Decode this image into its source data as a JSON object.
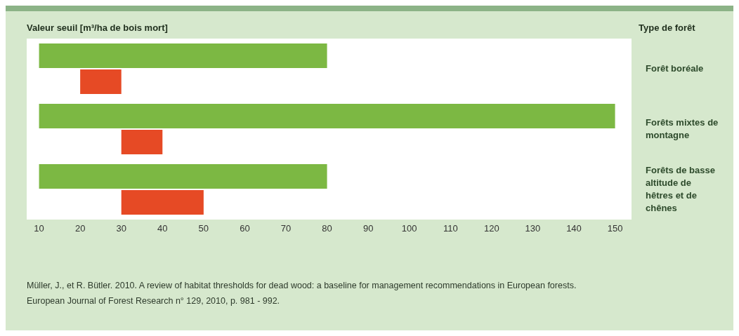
{
  "chart_data": {
    "type": "bar",
    "orientation": "horizontal",
    "title": "Valeur seuil [m³/ha de bois mort]",
    "ylabel": "Type de forêt",
    "categories": [
      "Forêt boréale",
      "Forêts mixtes de montagne",
      "Forêts de basse altitude de hêtres et de chênes"
    ],
    "series": [
      {
        "color": "#7cb843",
        "base": [
          10,
          10,
          10
        ],
        "values": [
          70,
          140,
          70
        ]
      },
      {
        "color": "#e64a25",
        "base": [
          20,
          30,
          30
        ],
        "values": [
          10,
          10,
          20
        ]
      }
    ],
    "xlim": [
      7,
      154
    ],
    "xticks": [
      10,
      20,
      30,
      40,
      50,
      60,
      70,
      80,
      90,
      100,
      110,
      120,
      130,
      140,
      150
    ],
    "grid": false,
    "legend": false,
    "annotations": [
      "Müller, J., et R. Bütler. 2010. A review of habitat thresholds for dead wood: a baseline for management recommendations in European forests. European Journal of Forest Research n° 129, 2010, p. 981 - 992."
    ]
  }
}
